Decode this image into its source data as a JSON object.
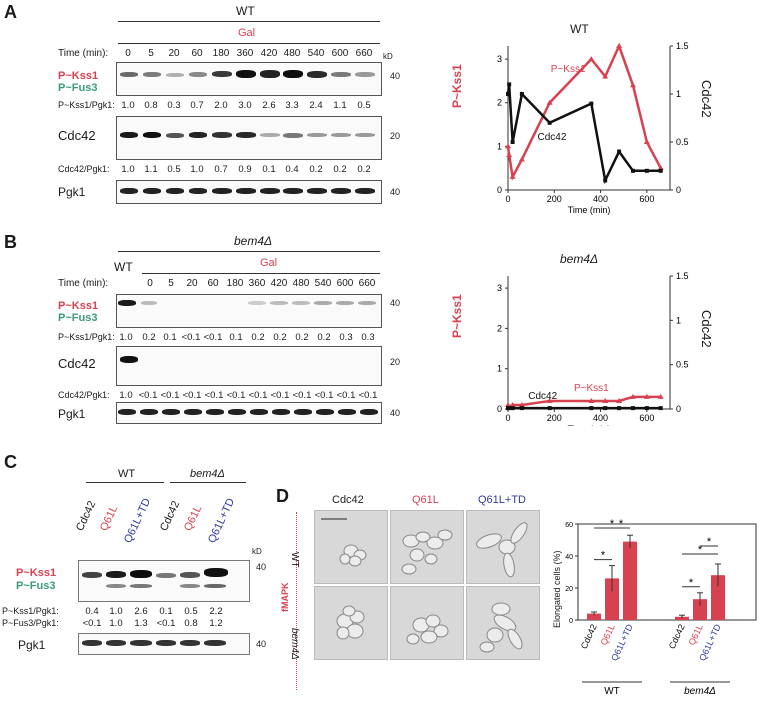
{
  "panels": {
    "A": "A",
    "B": "B",
    "C": "C",
    "D": "D"
  },
  "colors": {
    "red": "#d8414f",
    "green": "#3a9a7a",
    "blue": "#2f3a9c",
    "black": "#111111"
  },
  "common": {
    "time_label": "Time (min):",
    "gal": "Gal",
    "kd": "kD",
    "p_kss1": "P~Kss1",
    "p_fus3": "P~Fus3",
    "cdc42": "Cdc42",
    "pgk1": "Pgk1",
    "marker_40": "40",
    "marker_20": "20",
    "ratio_kss1": "P~Kss1/Pgk1:",
    "ratio_cdc42": "Cdc42/Pgk1:"
  },
  "panel_a": {
    "header": "WT",
    "times": [
      "0",
      "5",
      "20",
      "60",
      "180",
      "360",
      "420",
      "480",
      "540",
      "600",
      "660"
    ],
    "kss1_ratios": [
      "1.0",
      "0.8",
      "0.3",
      "0.7",
      "2.0",
      "3.0",
      "2.6",
      "3.3",
      "2.4",
      "1.1",
      "0.5"
    ],
    "cdc42_ratios": [
      "1.0",
      "1.1",
      "0.5",
      "1.0",
      "0.7",
      "0.9",
      "0.1",
      "0.4",
      "0.2",
      "0.2",
      "0.2"
    ]
  },
  "panel_b": {
    "header": "bem4Δ",
    "wt_lane": "WT",
    "times": [
      "0",
      "5",
      "20",
      "60",
      "180",
      "360",
      "420",
      "480",
      "540",
      "600",
      "660"
    ],
    "kss1_ratios": [
      "1.0",
      "0.2",
      "0.1",
      "<0.1",
      "<0.1",
      "0.1",
      "0.2",
      "0.2",
      "0.2",
      "0.2",
      "0.3",
      "0.3"
    ],
    "cdc42_ratios": [
      "1.0",
      "<0.1",
      "<0.1",
      "<0.1",
      "<0.1",
      "<0.1",
      "<0.1",
      "<0.1",
      "<0.1",
      "<0.1",
      "<0.1",
      "<0.1"
    ]
  },
  "panel_c": {
    "group_wt": "WT",
    "group_bem4": "bem4Δ",
    "lanes": [
      "Cdc42",
      "Q61L",
      "Q61L+TD",
      "Cdc42",
      "Q61L",
      "Q61L+TD"
    ],
    "kss1_label": "P~Kss1/Pgk1:",
    "fus3_label": "P~Fus3/Pgk1:",
    "kss1_ratios": [
      "0.4",
      "1.0",
      "2.6",
      "0.1",
      "0.5",
      "2.2"
    ],
    "fus3_ratios": [
      "<0.1",
      "1.0",
      "1.3",
      "<0.1",
      "0.8",
      "1.2"
    ]
  },
  "panel_d": {
    "side_label": "fMAPK",
    "columns": [
      "Cdc42",
      "Q61L",
      "Q61L+TD"
    ],
    "rows": [
      "WT",
      "bem4Δ"
    ],
    "ylabel": "Elongated cells (%)",
    "sig": "*",
    "group_wt": "WT",
    "group_bem4": "bem4Δ"
  },
  "chart_data": [
    {
      "type": "line",
      "title": "WT",
      "xlabel": "Time (min)",
      "ylabel_left": "P~Kss1",
      "ylabel_right": "Cdc42",
      "xlim": [
        0,
        700
      ],
      "ylim_left": [
        0,
        3.3
      ],
      "ylim_right": [
        0,
        1.5
      ],
      "x_ticks": [
        "0",
        "200",
        "400",
        "600"
      ],
      "y_ticks_left": [
        "0",
        "1",
        "2",
        "3"
      ],
      "y_ticks_right": [
        "0",
        "0.5",
        "1",
        "1.5"
      ],
      "series": [
        {
          "name": "P~Kss1",
          "axis": "left",
          "color": "#d8414f",
          "x": [
            0,
            5,
            20,
            60,
            180,
            360,
            420,
            480,
            540,
            600,
            660
          ],
          "values": [
            1.0,
            0.8,
            0.3,
            0.7,
            2.0,
            3.0,
            2.6,
            3.3,
            2.4,
            1.1,
            0.5
          ]
        },
        {
          "name": "Cdc42",
          "axis": "right",
          "color": "#111111",
          "x": [
            0,
            5,
            20,
            60,
            180,
            360,
            420,
            480,
            540,
            600,
            660
          ],
          "values": [
            1.0,
            1.1,
            0.5,
            1.0,
            0.7,
            0.9,
            0.1,
            0.4,
            0.2,
            0.2,
            0.2
          ]
        }
      ],
      "annotations": [
        "P~Kss1",
        "Cdc42"
      ]
    },
    {
      "type": "line",
      "title": "bem4Δ",
      "xlabel": "Time (min)",
      "ylabel_left": "P~Kss1",
      "ylabel_right": "Cdc42",
      "xlim": [
        0,
        700
      ],
      "ylim_left": [
        0,
        3.3
      ],
      "ylim_right": [
        0,
        1.5
      ],
      "x_ticks": [
        "0",
        "200",
        "400",
        "600"
      ],
      "y_ticks_left": [
        "0",
        "1",
        "2",
        "3"
      ],
      "y_ticks_right": [
        "0",
        "0.5",
        "1",
        "1.5"
      ],
      "series": [
        {
          "name": "P~Kss1",
          "axis": "left",
          "color": "#d8414f",
          "x": [
            0,
            5,
            20,
            60,
            180,
            360,
            420,
            480,
            540,
            600,
            660
          ],
          "values": [
            0.1,
            0.05,
            0.1,
            0.1,
            0.2,
            0.2,
            0.2,
            0.2,
            0.3,
            0.3,
            0.3
          ]
        },
        {
          "name": "Cdc42",
          "axis": "right",
          "color": "#111111",
          "x": [
            0,
            5,
            20,
            60,
            180,
            360,
            420,
            480,
            540,
            600,
            660
          ],
          "values": [
            0.01,
            0.01,
            0.01,
            0.01,
            0.01,
            0.01,
            0.01,
            0.01,
            0.01,
            0.01,
            0.01
          ]
        }
      ],
      "annotations": [
        "P~Kss1",
        "Cdc42"
      ]
    },
    {
      "type": "bar",
      "title": "",
      "ylabel": "Elongated cells (%)",
      "ylim": [
        0,
        60
      ],
      "y_ticks": [
        "0",
        "20",
        "40",
        "60"
      ],
      "categories": [
        "Cdc42",
        "Q61L",
        "Q61L+TD",
        "Cdc42",
        "Q61L",
        "Q61L+TD"
      ],
      "groups": [
        "WT",
        "bem4Δ"
      ],
      "values": [
        4,
        26,
        49,
        2,
        13,
        28
      ],
      "errors": [
        1,
        8,
        4,
        1,
        4,
        7
      ],
      "color": "#d8414f"
    }
  ]
}
